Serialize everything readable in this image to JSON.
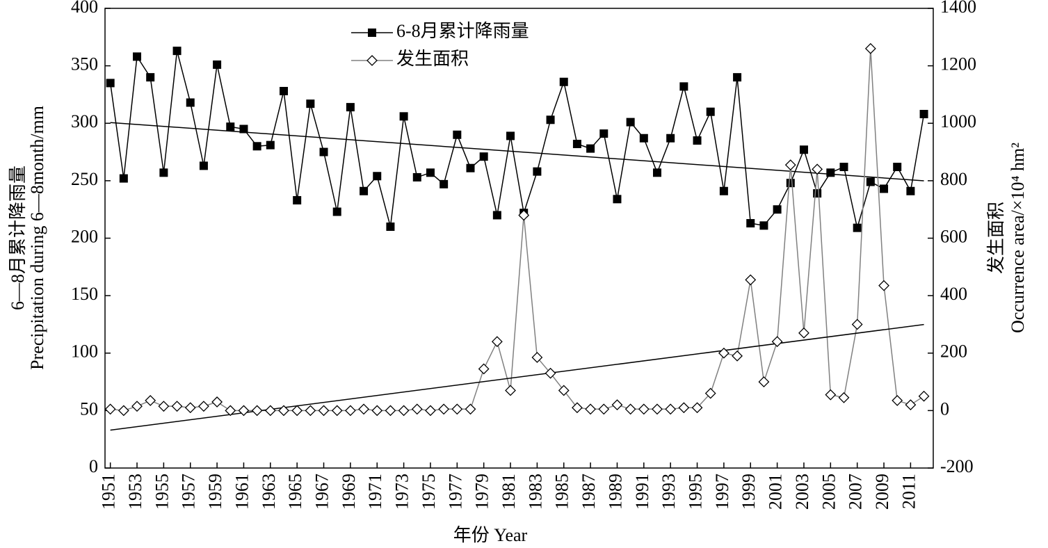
{
  "chart_data": {
    "type": "line",
    "x_label": "年份 Year",
    "y_label": [
      "6—8月累计降雨量",
      "Precipitation during 6—8month/mm"
    ],
    "y2_label": [
      "发生面积",
      "Occurrence area/×10⁴ hm²"
    ],
    "x": [
      1951,
      1952,
      1953,
      1954,
      1955,
      1956,
      1957,
      1958,
      1959,
      1960,
      1961,
      1962,
      1963,
      1964,
      1965,
      1966,
      1967,
      1968,
      1969,
      1970,
      1971,
      1972,
      1973,
      1974,
      1975,
      1976,
      1977,
      1978,
      1979,
      1980,
      1981,
      1982,
      1983,
      1984,
      1985,
      1986,
      1987,
      1988,
      1989,
      1990,
      1991,
      1992,
      1993,
      1994,
      1995,
      1996,
      1997,
      1998,
      1999,
      2000,
      2001,
      2002,
      2003,
      2004,
      2005,
      2006,
      2007,
      2008,
      2009,
      2010,
      2011,
      2012
    ],
    "series": [
      {
        "name": "6-8月累计降雨量",
        "color": "#000000",
        "marker": "square",
        "axis": "y",
        "values": [
          335,
          252,
          358,
          340,
          257,
          363,
          318,
          263,
          351,
          297,
          295,
          280,
          281,
          328,
          233,
          317,
          275,
          223,
          314,
          241,
          254,
          210,
          306,
          253,
          257,
          247,
          290,
          261,
          271,
          220,
          289,
          222,
          258,
          303,
          336,
          282,
          278,
          291,
          234,
          301,
          287,
          257,
          287,
          332,
          285,
          310,
          241,
          340,
          213,
          211,
          225,
          248,
          277,
          239,
          257,
          262,
          209,
          249,
          243,
          262,
          241,
          308
        ]
      },
      {
        "name": "发生面积",
        "color": "#808080",
        "marker": "diamond",
        "axis": "y2",
        "values": [
          5,
          0,
          15,
          35,
          15,
          15,
          10,
          15,
          30,
          0,
          0,
          0,
          0,
          0,
          0,
          0,
          0,
          0,
          0,
          5,
          0,
          0,
          0,
          5,
          0,
          5,
          5,
          5,
          145,
          240,
          70,
          680,
          185,
          130,
          70,
          10,
          5,
          5,
          20,
          5,
          5,
          5,
          5,
          10,
          10,
          60,
          200,
          190,
          455,
          100,
          240,
          855,
          270,
          840,
          55,
          45,
          300,
          1260,
          435,
          35,
          20,
          50
        ]
      }
    ],
    "xlim": [
      1950.6,
      2012.7
    ],
    "xticks": [
      1951,
      1953,
      1955,
      1957,
      1959,
      1961,
      1963,
      1965,
      1967,
      1969,
      1971,
      1973,
      1975,
      1977,
      1979,
      1981,
      1983,
      1985,
      1987,
      1989,
      1991,
      1993,
      1995,
      1997,
      1999,
      2001,
      2003,
      2005,
      2007,
      2009,
      2011
    ],
    "ylim": [
      0,
      400
    ],
    "yticks": [
      0,
      50,
      100,
      150,
      200,
      250,
      300,
      350,
      400
    ],
    "y2lim": [
      -200,
      1400
    ],
    "y2ticks": [
      -200,
      0,
      200,
      400,
      600,
      800,
      1000,
      1200,
      1400
    ],
    "trendline": true,
    "legend": "top"
  }
}
